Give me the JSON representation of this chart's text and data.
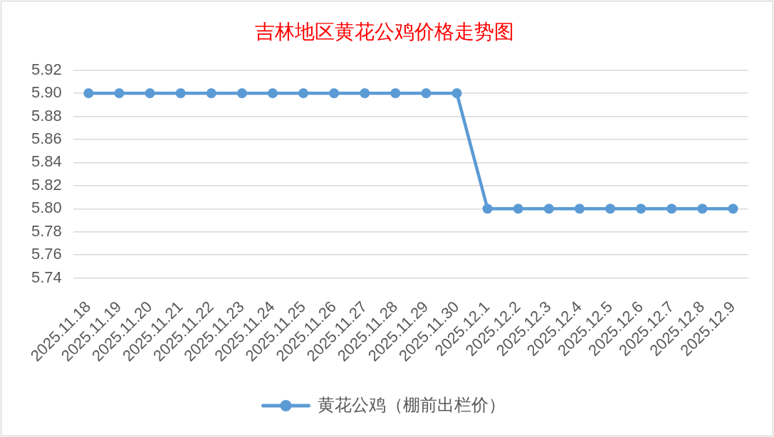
{
  "chart_data": {
    "type": "line",
    "title": "吉林地区黄花公鸡价格走势图",
    "categories": [
      "2025.11.18",
      "2025.11.19",
      "2025.11.20",
      "2025.11.21",
      "2025.11.22",
      "2025.11.23",
      "2025.11.24",
      "2025.11.25",
      "2025.11.26",
      "2025.11.27",
      "2025.11.28",
      "2025.11.29",
      "2025.11.30",
      "2025.12.1",
      "2025.12.2",
      "2025.12.3",
      "2025.12.4",
      "2025.12.5",
      "2025.12.6",
      "2025.12.7",
      "2025.12.8",
      "2025.12.9"
    ],
    "series": [
      {
        "name": "黄花公鸡（棚前出栏价）",
        "color": "#5b9bd5",
        "values": [
          5.9,
          5.9,
          5.9,
          5.9,
          5.9,
          5.9,
          5.9,
          5.9,
          5.9,
          5.9,
          5.9,
          5.9,
          5.9,
          5.8,
          5.8,
          5.8,
          5.8,
          5.8,
          5.8,
          5.8,
          5.8,
          5.8
        ]
      }
    ],
    "ylim": [
      5.74,
      5.92
    ],
    "yticks": [
      5.74,
      5.76,
      5.78,
      {
        "value": 5.8,
        "label": "5.80"
      },
      5.82,
      5.84,
      5.86,
      5.88,
      {
        "value": 5.9,
        "label": "5.90"
      },
      5.92
    ],
    "grid": "y",
    "legend": "bottom",
    "marker": "circle",
    "line_style": "solid"
  }
}
